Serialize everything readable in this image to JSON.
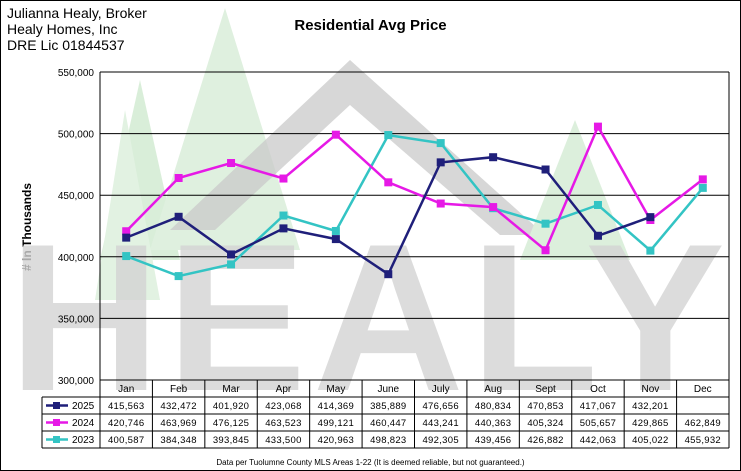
{
  "header": {
    "line1": "Julianna Healy, Broker",
    "line2": "Healy Homes, Inc",
    "line3": "DRE Lic 01844537"
  },
  "watermark": {
    "text": "HEALY"
  },
  "footnote": "Data per Tuolumne County MLS Areas 1-22 (It is deemed reliable, but not guaranteed.)",
  "colors": {
    "2025": "#1f1f7a",
    "2024": "#e619e6",
    "2023": "#33c4c4",
    "watermark": "#dcdcdc",
    "trees": "#d7ecd7"
  },
  "chart_data": {
    "type": "line",
    "title": "Residential Avg Price",
    "ylabel": "# In Thousands",
    "xlabel": "",
    "ylim": [
      300000,
      550000
    ],
    "yticks": [
      "300,000",
      "350,000",
      "400,000",
      "450,000",
      "500,000",
      "550,000"
    ],
    "grid": true,
    "legend": "table-bottom",
    "categories": [
      "Jan",
      "Feb",
      "Mar",
      "Apr",
      "May",
      "June",
      "July",
      "Aug",
      "Sept",
      "Oct",
      "Nov",
      "Dec"
    ],
    "series": [
      {
        "name": "2025",
        "color": "#1f1f7a",
        "marker": "square",
        "values": [
          415563,
          432472,
          401920,
          423068,
          414369,
          385889,
          476656,
          480834,
          470853,
          417067,
          432201,
          null
        ],
        "labels": [
          "415,563",
          "432,472",
          "401,920",
          "423,068",
          "414,369",
          "385,889",
          "476,656",
          "480,834",
          "470,853",
          "417,067",
          "432,201",
          ""
        ]
      },
      {
        "name": "2024",
        "color": "#e619e6",
        "marker": "square",
        "values": [
          420746,
          463969,
          476125,
          463523,
          499121,
          460447,
          443241,
          440363,
          405324,
          505657,
          429865,
          462849
        ],
        "labels": [
          "420,746",
          "463,969",
          "476,125",
          "463,523",
          "499,121",
          "460,447",
          "443,241",
          "440,363",
          "405,324",
          "505,657",
          "429,865",
          "462,849"
        ]
      },
      {
        "name": "2023",
        "color": "#33c4c4",
        "marker": "square",
        "values": [
          400587,
          384348,
          393845,
          433500,
          420963,
          498823,
          492305,
          439456,
          426882,
          442063,
          405022,
          455932
        ],
        "labels": [
          "400,587",
          "384,348",
          "393,845",
          "433,500",
          "420,963",
          "498,823",
          "492,305",
          "439,456",
          "426,882",
          "442,063",
          "405,022",
          "455,932"
        ]
      }
    ]
  }
}
